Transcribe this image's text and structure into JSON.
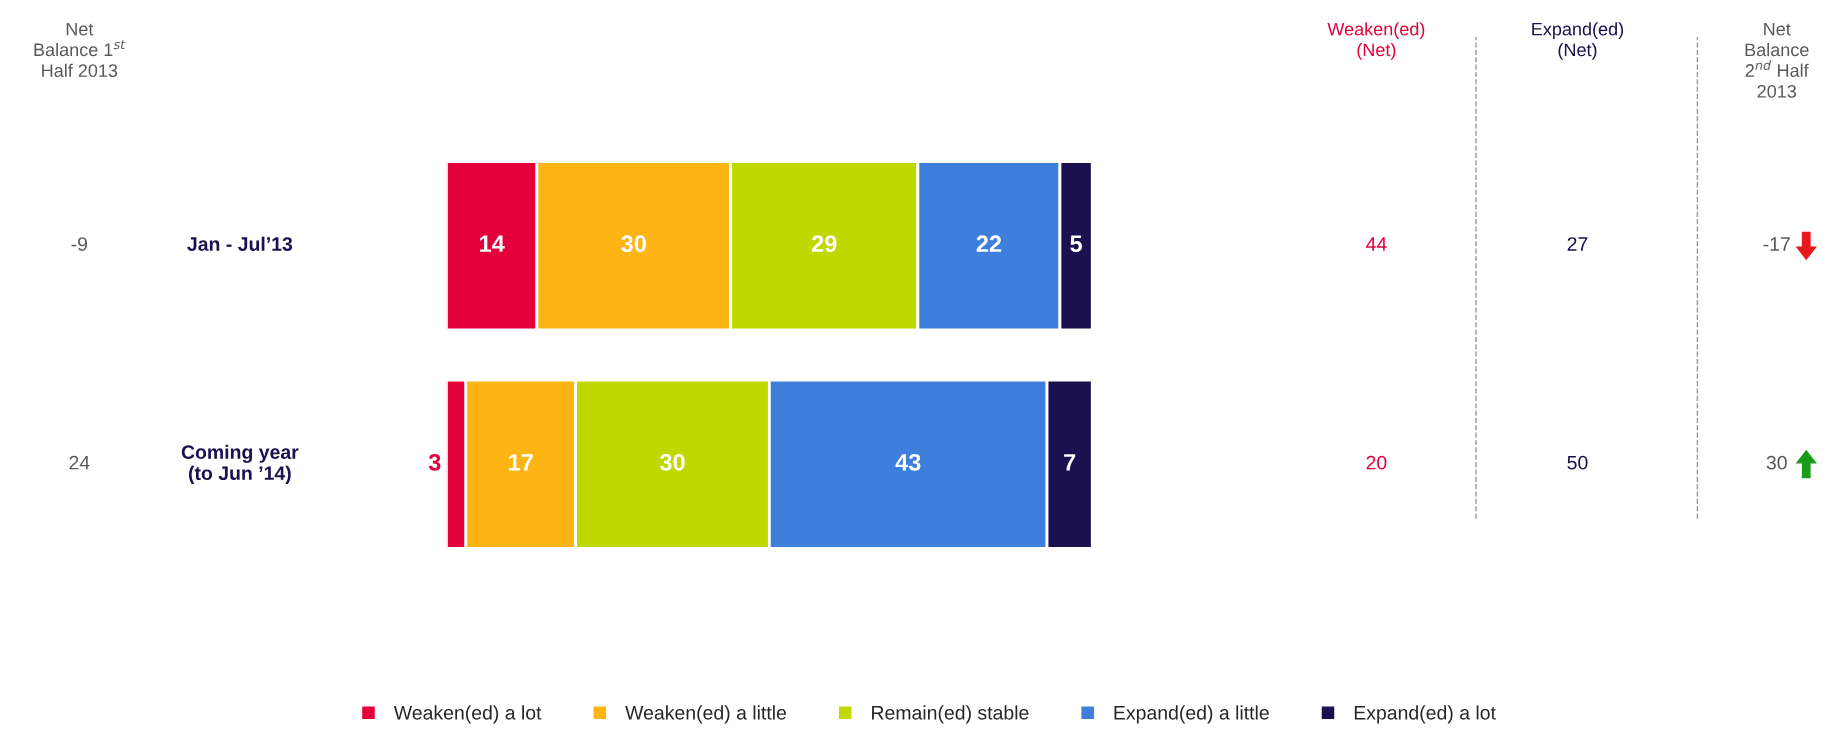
{
  "chart_data": {
    "type": "bar",
    "orientation": "horizontal",
    "stacked": true,
    "categories": [
      "Jan - Jul’13",
      "Coming year\n(to Jun ’14)"
    ],
    "series": [
      {
        "name": "Weaken(ed) a lot",
        "color": "#e4003a",
        "values": [
          14,
          3
        ]
      },
      {
        "name": "Weaken(ed) a little",
        "color": "#fdb515",
        "values": [
          30,
          17
        ]
      },
      {
        "name": "Remain(ed) stable",
        "color": "#bfd900",
        "values": [
          29,
          30
        ]
      },
      {
        "name": "Expand(ed) a little",
        "color": "#3d7fdb",
        "values": [
          22,
          43
        ]
      },
      {
        "name": "Expand(ed) a lot",
        "color": "#1c1150",
        "values": [
          5,
          7
        ]
      }
    ],
    "data_labels": true,
    "legend": "bottom",
    "annotations": [
      "Net\nBalance 1$^{st}$\nHalf 2013",
      "Weaken(ed)\n(Net)",
      "Expand(ed)\n(Net)",
      "Net\nBalance\n2$^{nd}$ Half\n2013",
      "-9",
      "44",
      "27",
      "-17",
      "24",
      "20",
      "50",
      "30"
    ]
  }
}
